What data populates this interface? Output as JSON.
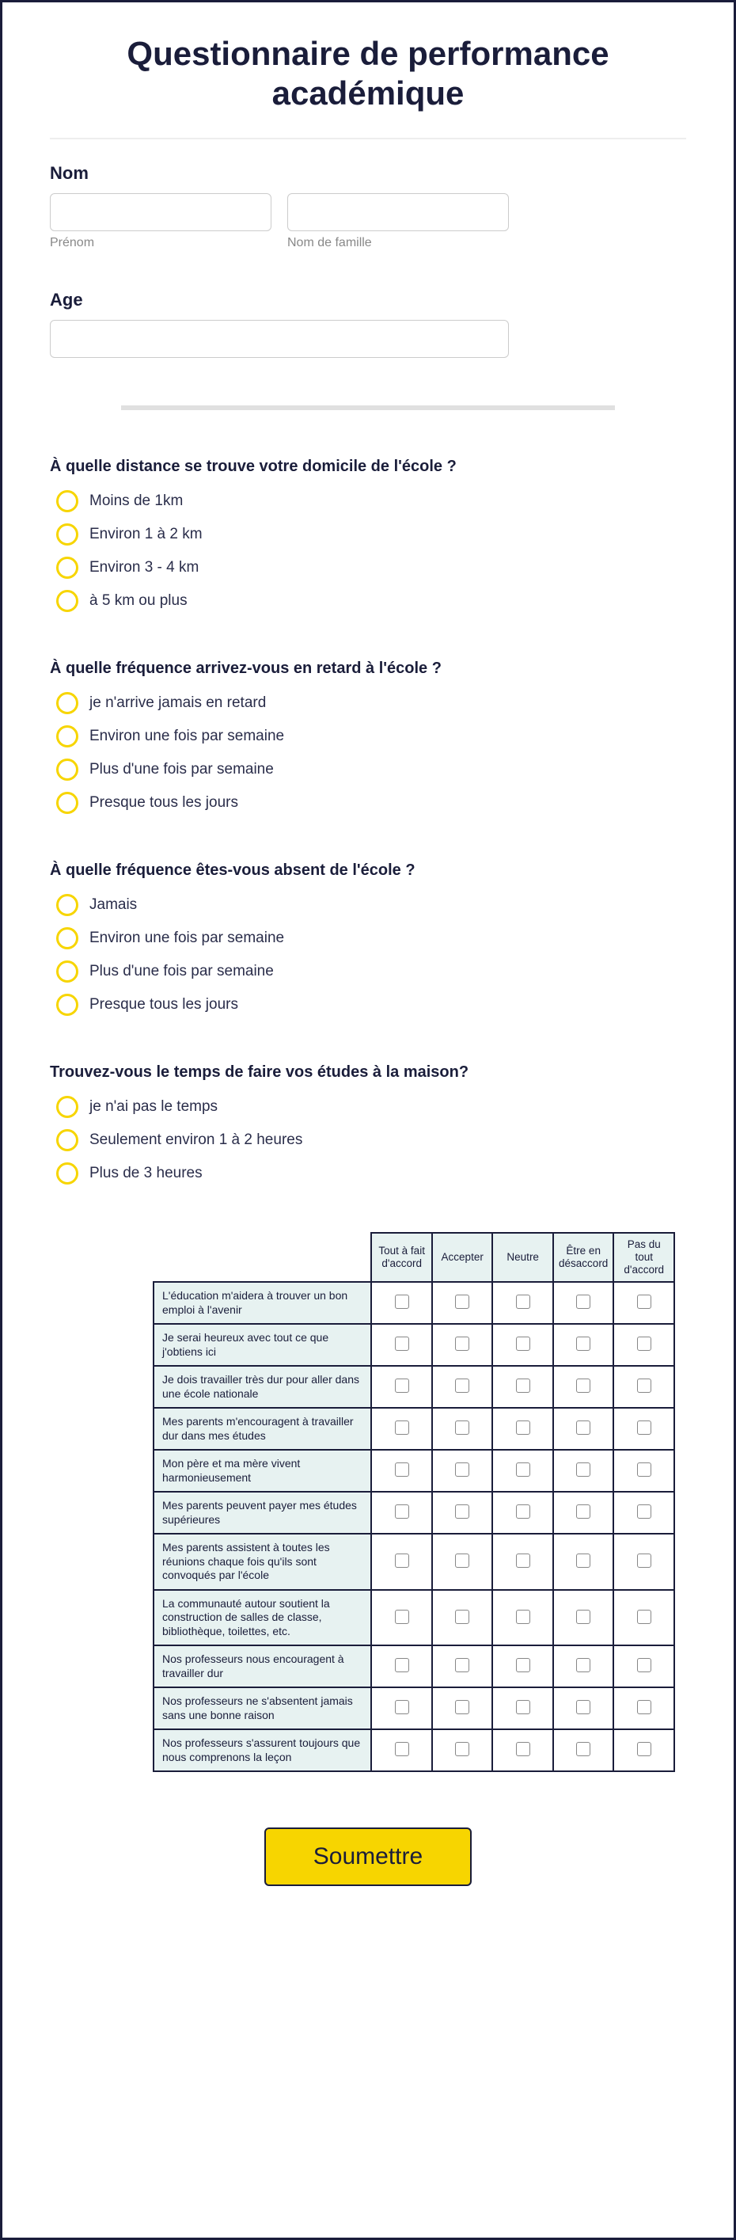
{
  "title": "Questionnaire de performance académique",
  "name_section": {
    "label": "Nom",
    "first_caption": "Prénom",
    "last_caption": "Nom de famille"
  },
  "age_section": {
    "label": "Age"
  },
  "questions": [
    {
      "text": "À quelle distance se trouve votre domicile de l'école ?",
      "options": [
        "Moins de 1km",
        "Environ 1 à 2 km",
        "Environ 3 - 4 km",
        "à 5 km ou plus"
      ]
    },
    {
      "text": "À quelle fréquence arrivez-vous en retard à l'école ?",
      "options": [
        "je n'arrive jamais en retard",
        "Environ une fois par semaine",
        "Plus d'une fois par semaine",
        "Presque tous les jours"
      ]
    },
    {
      "text": "À quelle fréquence êtes-vous absent de l'école ?",
      "options": [
        "Jamais",
        "Environ une fois par semaine",
        "Plus d'une fois par semaine",
        "Presque tous les jours"
      ]
    },
    {
      "text": "Trouvez-vous le temps de faire vos études à la maison?",
      "options": [
        "je n'ai pas le temps",
        "Seulement environ 1 à 2 heures",
        "Plus de 3 heures"
      ]
    }
  ],
  "likert": {
    "columns": [
      "Tout à fait d'accord",
      "Accepter",
      "Neutre",
      "Être en désaccord",
      "Pas du tout d'accord"
    ],
    "rows": [
      "L'éducation m'aidera à trouver un bon emploi à l'avenir",
      "Je serai heureux avec tout ce que j'obtiens ici",
      "Je dois travailler très dur pour aller dans une école nationale",
      "Mes parents m'encouragent à travailler dur dans mes études",
      "Mon père et ma mère vivent harmonieusement",
      "Mes parents peuvent payer mes études supérieures",
      "Mes parents assistent à toutes les réunions chaque fois qu'ils sont convoqués par l'école",
      "La communauté autour soutient la construction de salles de classe, bibliothèque, toilettes, etc.",
      "Nos professeurs nous encouragent à travailler dur",
      "Nos professeurs ne s'absentent jamais sans une bonne raison",
      "Nos professeurs s'assurent toujours que nous comprenons la leçon"
    ]
  },
  "submit_label": "Soumettre",
  "colors": {
    "border": "#1a1d3a",
    "accent": "#f7d500",
    "header_bg": "#e7f2f1"
  }
}
